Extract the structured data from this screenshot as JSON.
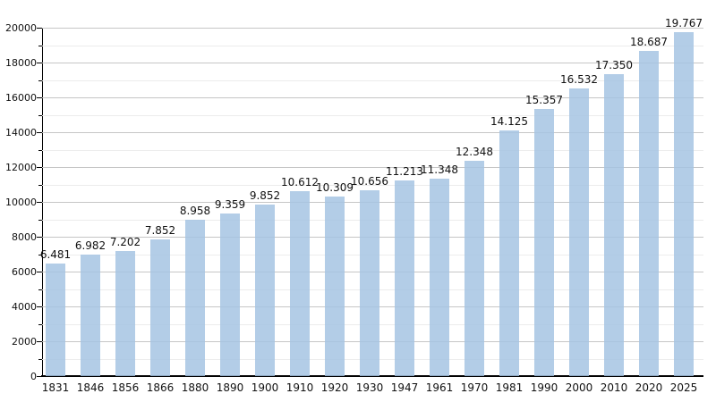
{
  "chart_data": {
    "type": "bar",
    "title": "",
    "xlabel": "",
    "ylabel": "",
    "categories": [
      "1831",
      "1846",
      "1856",
      "1866",
      "1880",
      "1890",
      "1900",
      "1910",
      "1920",
      "1930",
      "1947",
      "1961",
      "1970",
      "1981",
      "1990",
      "2000",
      "2010",
      "2020",
      "2025"
    ],
    "values": [
      6481,
      6982,
      7202,
      7852,
      8958,
      9359,
      9852,
      10612,
      10309,
      10656,
      11213,
      11348,
      12348,
      14125,
      15357,
      16532,
      17350,
      18687,
      19767
    ],
    "value_labels": [
      "6.481",
      "6.982",
      "7.202",
      "7.852",
      "8.958",
      "9.359",
      "9.852",
      "10.612",
      "10.309",
      "10.656",
      "11.213",
      "11.348",
      "12.348",
      "14.125",
      "15.357",
      "16.532",
      "17.350",
      "18.687",
      "19.767"
    ],
    "ylim": [
      0,
      20000
    ],
    "y_major_step": 2000,
    "y_minor_step": 1000,
    "y_tick_labels": [
      "0",
      "2000",
      "4000",
      "6000",
      "8000",
      "10000",
      "12000",
      "14000",
      "16000",
      "18000",
      "20000"
    ],
    "grid": "horizontal major and minor gridlines",
    "legend": "none",
    "colors": {
      "bar_fill": "#b3cbe4",
      "major_grid": "#c6c6c6",
      "minor_grid": "#ececec",
      "axis": "#000000",
      "text": "#111111",
      "background": "#ffffff"
    }
  }
}
